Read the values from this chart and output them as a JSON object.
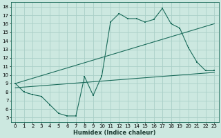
{
  "xlabel": "Humidex (Indice chaleur)",
  "xlim": [
    -0.5,
    23.5
  ],
  "ylim": [
    4.5,
    18.5
  ],
  "yticks": [
    5,
    6,
    7,
    8,
    9,
    10,
    11,
    12,
    13,
    14,
    15,
    16,
    17,
    18
  ],
  "xticks": [
    0,
    1,
    2,
    3,
    4,
    5,
    6,
    7,
    8,
    9,
    10,
    11,
    12,
    13,
    14,
    15,
    16,
    17,
    18,
    19,
    20,
    21,
    22,
    23
  ],
  "bg_color": "#cce8e0",
  "line_color": "#1a6b5a",
  "grid_color": "#aacfc8",
  "line1_x": [
    0,
    1,
    2,
    3,
    4,
    5,
    6,
    7,
    8,
    9,
    10,
    11,
    12,
    13,
    14,
    15,
    16,
    17,
    18,
    19,
    20,
    21,
    22,
    23
  ],
  "line1_y": [
    9.0,
    8.0,
    7.7,
    7.5,
    6.5,
    5.5,
    5.2,
    5.2,
    9.8,
    7.6,
    9.9,
    16.2,
    17.2,
    16.6,
    16.6,
    16.2,
    16.5,
    17.8,
    16.0,
    15.5,
    13.2,
    11.5,
    10.5,
    10.5
  ],
  "line2_x": [
    0,
    23
  ],
  "line2_y": [
    8.5,
    10.3
  ],
  "line3_x": [
    0,
    23
  ],
  "line3_y": [
    9.0,
    16.0
  ]
}
